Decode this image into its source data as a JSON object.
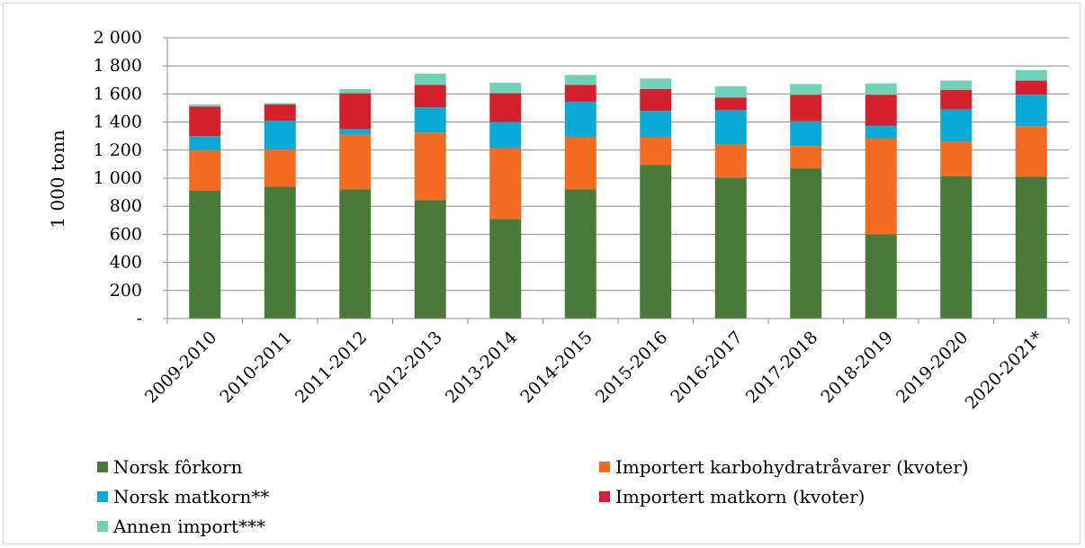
{
  "chart_data": {
    "type": "bar",
    "stacked": true,
    "ylabel": "1 000 tonn",
    "xlabel": "",
    "ylim": [
      0,
      2000
    ],
    "yticks": [
      0,
      200,
      400,
      600,
      800,
      1000,
      1200,
      1400,
      1600,
      1800,
      2000
    ],
    "ytick_labels": [
      "-",
      "200",
      "400",
      "600",
      "800",
      "1 000",
      "1 200",
      "1 400",
      "1 600",
      "1 800",
      "2 000"
    ],
    "grid": true,
    "legend_position": "bottom",
    "categories": [
      "2009-2010",
      "2010-2011",
      "2011-2012",
      "2012-2013",
      "2013-2014",
      "2014-2015",
      "2015-2016",
      "2016-2017",
      "2017-2018",
      "2018-2019",
      "2019-2020",
      "2020-2021*"
    ],
    "series": [
      {
        "name": "Norsk fôrkorn",
        "color": "#4a7a3a",
        "values": [
          910,
          940,
          920,
          845,
          710,
          920,
          1095,
          1005,
          1070,
          600,
          1015,
          1010
        ]
      },
      {
        "name": "Importert karbohydratråvarer (kvoter)",
        "color": "#f26b21",
        "values": [
          290,
          265,
          390,
          480,
          505,
          375,
          200,
          235,
          160,
          685,
          245,
          360
        ]
      },
      {
        "name": "Norsk matkorn**",
        "color": "#0aaad6",
        "values": [
          100,
          205,
          40,
          180,
          185,
          250,
          185,
          245,
          175,
          90,
          230,
          225
        ]
      },
      {
        "name": "Importert matkorn (kvoter)",
        "color": "#d4202c",
        "values": [
          210,
          115,
          255,
          160,
          205,
          120,
          155,
          90,
          190,
          220,
          140,
          100
        ]
      },
      {
        "name": "Annen import***",
        "color": "#6fd2b6",
        "values": [
          15,
          10,
          30,
          80,
          75,
          70,
          75,
          80,
          75,
          80,
          65,
          75
        ]
      }
    ]
  }
}
